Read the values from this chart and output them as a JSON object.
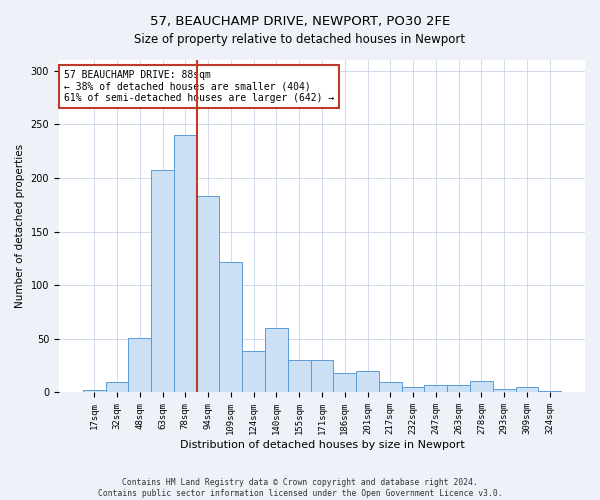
{
  "title1": "57, BEAUCHAMP DRIVE, NEWPORT, PO30 2FE",
  "title2": "Size of property relative to detached houses in Newport",
  "xlabel": "Distribution of detached houses by size in Newport",
  "ylabel": "Number of detached properties",
  "bar_labels": [
    "17sqm",
    "32sqm",
    "48sqm",
    "63sqm",
    "78sqm",
    "94sqm",
    "109sqm",
    "124sqm",
    "140sqm",
    "155sqm",
    "171sqm",
    "186sqm",
    "201sqm",
    "217sqm",
    "232sqm",
    "247sqm",
    "263sqm",
    "278sqm",
    "293sqm",
    "309sqm",
    "324sqm"
  ],
  "bar_values": [
    2,
    10,
    51,
    207,
    240,
    183,
    122,
    39,
    60,
    30,
    30,
    18,
    20,
    10,
    5,
    7,
    7,
    11,
    3,
    5,
    1
  ],
  "bar_color": "#cce0f5",
  "bar_edge_color": "#5b9bd5",
  "vline_x": 4.5,
  "vline_color": "#c0392b",
  "annotation_text": "57 BEAUCHAMP DRIVE: 88sqm\n← 38% of detached houses are smaller (404)\n61% of semi-detached houses are larger (642) →",
  "annotation_box_color": "white",
  "annotation_box_edge": "#c0392b",
  "ylim": [
    0,
    310
  ],
  "yticks": [
    0,
    50,
    100,
    150,
    200,
    250,
    300
  ],
  "footer1": "Contains HM Land Registry data © Crown copyright and database right 2024.",
  "footer2": "Contains public sector information licensed under the Open Government Licence v3.0.",
  "bg_color": "#eef2f8",
  "plot_bg_color": "white",
  "title1_fontsize": 9.5,
  "title2_fontsize": 8.5,
  "ylabel_fontsize": 7.5,
  "xlabel_fontsize": 8.0,
  "tick_fontsize": 6.5,
  "annotation_fontsize": 7.0,
  "footer_fontsize": 5.8
}
